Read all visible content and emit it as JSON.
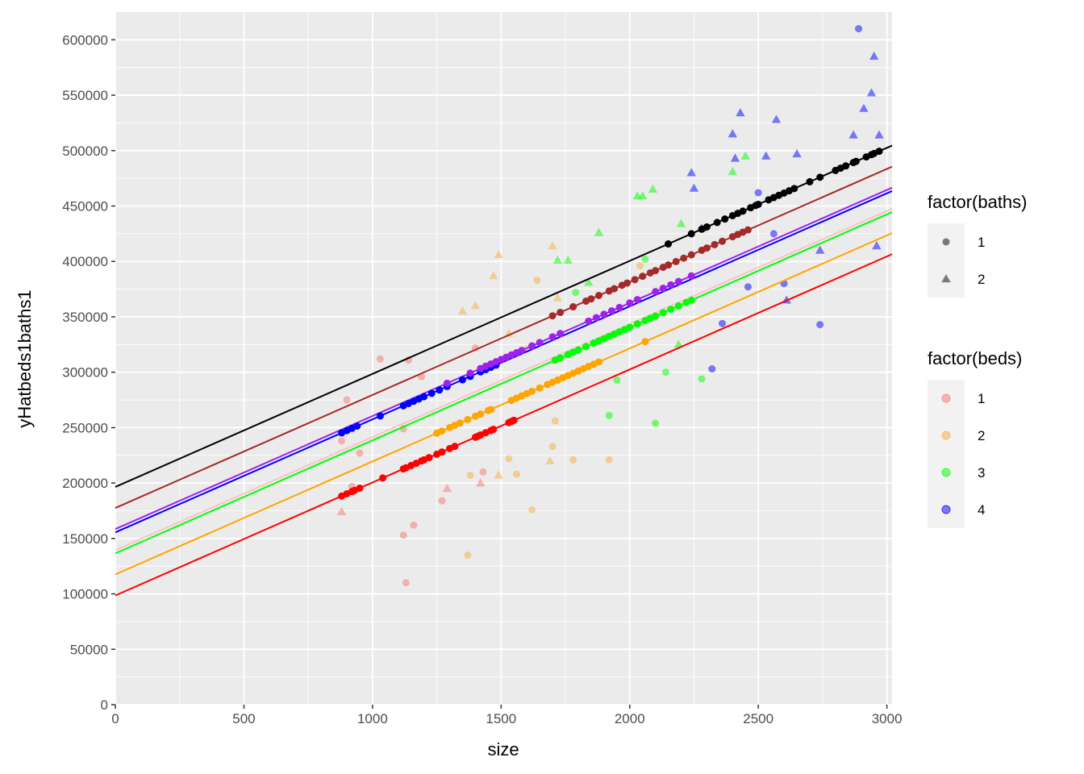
{
  "chart_data": {
    "type": "scatter",
    "xlabel": "size",
    "ylabel": "yHatbeds1baths1",
    "xlim": [
      0,
      3020
    ],
    "ylim": [
      0,
      625000
    ],
    "x_ticks": [
      0,
      500,
      1000,
      1500,
      2000,
      2500,
      3000
    ],
    "y_ticks": [
      0,
      50000,
      100000,
      150000,
      200000,
      250000,
      300000,
      350000,
      400000,
      450000,
      500000,
      550000,
      600000
    ],
    "grid": true,
    "legend_placement": "right",
    "legends": [
      {
        "title": "factor(baths)",
        "entries": [
          {
            "label": "1",
            "shape": "circle"
          },
          {
            "label": "2",
            "shape": "triangle"
          }
        ]
      },
      {
        "title": "factor(beds)",
        "entries": [
          {
            "label": "1",
            "color": "#F8766D"
          },
          {
            "label": "2",
            "color": "#F5B041"
          },
          {
            "label": "3",
            "color": "#00FF00"
          },
          {
            "label": "4",
            "color": "#0000FF"
          }
        ]
      }
    ],
    "colors": {
      "beds1": "#ff0000",
      "beds2": "#ffa500",
      "beds3": "#00ee00",
      "beds4": "#0000ff"
    },
    "lines": [
      {
        "color": "#000000",
        "intercept": 196500,
        "slope": 102
      },
      {
        "color": "#a52a2a",
        "intercept": 177500,
        "slope": 102
      },
      {
        "color": "#a020f0",
        "intercept": 158500,
        "slope": 102
      },
      {
        "color": "#0000ff",
        "intercept": 155500,
        "slope": 102
      },
      {
        "color": "#ffc0cb",
        "intercept": 139500,
        "slope": 102
      },
      {
        "color": "#00ff00",
        "intercept": 136500,
        "slope": 102
      },
      {
        "color": "#ffa500",
        "intercept": 117500,
        "slope": 102
      },
      {
        "color": "#ff0000",
        "intercept": 98500,
        "slope": 102
      }
    ],
    "fitted_points": [
      {
        "color": "#ff0000",
        "x": [
          880,
          900,
          920,
          930,
          950,
          1040,
          1120,
          1130,
          1150,
          1170,
          1190,
          1200,
          1220,
          1250,
          1270,
          1300,
          1320,
          1400,
          1410,
          1420,
          1440,
          1460,
          1470,
          1530,
          1540,
          1550
        ]
      },
      {
        "color": "#ffa500",
        "x": [
          1250,
          1270,
          1300,
          1320,
          1340,
          1370,
          1400,
          1420,
          1450,
          1460,
          1540,
          1560,
          1580,
          1600,
          1620,
          1650,
          1680,
          1700,
          1720,
          1740,
          1760,
          1780,
          1800,
          1820,
          1840,
          1860,
          1880,
          2060
        ]
      },
      {
        "color": "#00ff00",
        "x": [
          1710,
          1730,
          1760,
          1780,
          1800,
          1830,
          1860,
          1880,
          1900,
          1920,
          1940,
          1960,
          1980,
          2000,
          2030,
          2060,
          2080,
          2100,
          2130,
          2160,
          2190,
          2220,
          2240
        ]
      },
      {
        "color": "#0000ff",
        "x": [
          880,
          900,
          920,
          940,
          1030,
          1120,
          1140,
          1160,
          1180,
          1200,
          1230,
          1260,
          1290,
          1350,
          1380,
          1420,
          1440,
          1460,
          1480
        ]
      },
      {
        "color": "#a020f0",
        "x": [
          1290,
          1380,
          1420,
          1440,
          1460,
          1480,
          1500,
          1520,
          1540,
          1560,
          1580,
          1620,
          1650,
          1700,
          1730,
          1840,
          1870,
          1900,
          1930,
          1960,
          2000,
          2030,
          2100,
          2130,
          2160,
          2190,
          2240
        ]
      },
      {
        "color": "#a52a2a",
        "x": [
          1700,
          1730,
          1780,
          1830,
          1850,
          1880,
          1920,
          1940,
          1970,
          1990,
          2020,
          2050,
          2080,
          2100,
          2130,
          2150,
          2180,
          2210,
          2240,
          2280,
          2300,
          2330,
          2360,
          2400,
          2420,
          2440,
          2460
        ]
      },
      {
        "color": "#000000",
        "x": [
          2150,
          2240,
          2280,
          2300,
          2340,
          2370,
          2400,
          2420,
          2440,
          2470,
          2490,
          2500,
          2540,
          2560,
          2580,
          2600,
          2620,
          2640,
          2700,
          2740,
          2800,
          2820,
          2840,
          2870,
          2880,
          2920,
          2940,
          2950,
          2970
        ]
      }
    ],
    "observations": [
      {
        "x": 880,
        "y": 238000,
        "color": "#F8766D",
        "shape": "circle"
      },
      {
        "x": 880,
        "y": 174000,
        "color": "#F8766D",
        "shape": "triangle"
      },
      {
        "x": 900,
        "y": 275000,
        "color": "#F8766D",
        "shape": "circle"
      },
      {
        "x": 920,
        "y": 197000,
        "color": "#F8766D",
        "shape": "circle"
      },
      {
        "x": 950,
        "y": 227000,
        "color": "#F8766D",
        "shape": "circle"
      },
      {
        "x": 1030,
        "y": 312000,
        "color": "#F8766D",
        "shape": "circle"
      },
      {
        "x": 1120,
        "y": 249000,
        "color": "#F8766D",
        "shape": "circle"
      },
      {
        "x": 1120,
        "y": 153000,
        "color": "#F8766D",
        "shape": "circle"
      },
      {
        "x": 1130,
        "y": 110000,
        "color": "#F8766D",
        "shape": "circle"
      },
      {
        "x": 1140,
        "y": 311000,
        "color": "#F8766D",
        "shape": "circle"
      },
      {
        "x": 1160,
        "y": 162000,
        "color": "#F8766D",
        "shape": "circle"
      },
      {
        "x": 1190,
        "y": 296000,
        "color": "#F8766D",
        "shape": "circle"
      },
      {
        "x": 1270,
        "y": 184000,
        "color": "#F8766D",
        "shape": "circle"
      },
      {
        "x": 1290,
        "y": 195000,
        "color": "#F8766D",
        "shape": "triangle"
      },
      {
        "x": 1420,
        "y": 200000,
        "color": "#F8766D",
        "shape": "triangle"
      },
      {
        "x": 1430,
        "y": 210000,
        "color": "#F8766D",
        "shape": "circle"
      },
      {
        "x": 1400,
        "y": 322000,
        "color": "#F8766D",
        "shape": "circle"
      },
      {
        "x": 1370,
        "y": 135000,
        "color": "#F5B041",
        "shape": "circle"
      },
      {
        "x": 1380,
        "y": 207000,
        "color": "#F5B041",
        "shape": "circle"
      },
      {
        "x": 1350,
        "y": 355000,
        "color": "#F5B041",
        "shape": "triangle"
      },
      {
        "x": 1400,
        "y": 360000,
        "color": "#F5B041",
        "shape": "triangle"
      },
      {
        "x": 1470,
        "y": 387000,
        "color": "#F5B041",
        "shape": "triangle"
      },
      {
        "x": 1490,
        "y": 406000,
        "color": "#F5B041",
        "shape": "triangle"
      },
      {
        "x": 1490,
        "y": 207000,
        "color": "#F5B041",
        "shape": "triangle"
      },
      {
        "x": 1530,
        "y": 222000,
        "color": "#F5B041",
        "shape": "circle"
      },
      {
        "x": 1560,
        "y": 208000,
        "color": "#F5B041",
        "shape": "circle"
      },
      {
        "x": 1620,
        "y": 176000,
        "color": "#F5B041",
        "shape": "circle"
      },
      {
        "x": 1640,
        "y": 383000,
        "color": "#F5B041",
        "shape": "circle"
      },
      {
        "x": 1690,
        "y": 220000,
        "color": "#F5B041",
        "shape": "triangle"
      },
      {
        "x": 1700,
        "y": 233000,
        "color": "#F5B041",
        "shape": "circle"
      },
      {
        "x": 1700,
        "y": 414000,
        "color": "#F5B041",
        "shape": "triangle"
      },
      {
        "x": 1720,
        "y": 367000,
        "color": "#F5B041",
        "shape": "triangle"
      },
      {
        "x": 1710,
        "y": 256000,
        "color": "#F5B041",
        "shape": "circle"
      },
      {
        "x": 1780,
        "y": 221000,
        "color": "#F5B041",
        "shape": "circle"
      },
      {
        "x": 1920,
        "y": 221000,
        "color": "#F5B041",
        "shape": "circle"
      },
      {
        "x": 1530,
        "y": 335000,
        "color": "#F5B041",
        "shape": "triangle"
      },
      {
        "x": 1600,
        "y": 321000,
        "color": "#F5B041",
        "shape": "circle"
      },
      {
        "x": 2040,
        "y": 396000,
        "color": "#F5B041",
        "shape": "circle"
      },
      {
        "x": 1720,
        "y": 401000,
        "color": "#00FF00",
        "shape": "triangle"
      },
      {
        "x": 1760,
        "y": 401000,
        "color": "#00FF00",
        "shape": "triangle"
      },
      {
        "x": 1790,
        "y": 372000,
        "color": "#00FF00",
        "shape": "circle"
      },
      {
        "x": 1840,
        "y": 381000,
        "color": "#00FF00",
        "shape": "triangle"
      },
      {
        "x": 1880,
        "y": 426000,
        "color": "#00FF00",
        "shape": "triangle"
      },
      {
        "x": 1920,
        "y": 261000,
        "color": "#00FF00",
        "shape": "circle"
      },
      {
        "x": 1950,
        "y": 293000,
        "color": "#00FF00",
        "shape": "circle"
      },
      {
        "x": 2030,
        "y": 459000,
        "color": "#00FF00",
        "shape": "triangle"
      },
      {
        "x": 2050,
        "y": 459000,
        "color": "#00FF00",
        "shape": "triangle"
      },
      {
        "x": 2090,
        "y": 465000,
        "color": "#00FF00",
        "shape": "triangle"
      },
      {
        "x": 2060,
        "y": 402000,
        "color": "#00FF00",
        "shape": "circle"
      },
      {
        "x": 2100,
        "y": 254000,
        "color": "#00FF00",
        "shape": "circle"
      },
      {
        "x": 2140,
        "y": 300000,
        "color": "#00FF00",
        "shape": "circle"
      },
      {
        "x": 2190,
        "y": 325000,
        "color": "#00FF00",
        "shape": "triangle"
      },
      {
        "x": 2200,
        "y": 434000,
        "color": "#00FF00",
        "shape": "triangle"
      },
      {
        "x": 2280,
        "y": 294000,
        "color": "#00FF00",
        "shape": "circle"
      },
      {
        "x": 2400,
        "y": 481000,
        "color": "#00FF00",
        "shape": "triangle"
      },
      {
        "x": 2450,
        "y": 495000,
        "color": "#00FF00",
        "shape": "triangle"
      },
      {
        "x": 2240,
        "y": 480000,
        "color": "#0000FF",
        "shape": "triangle"
      },
      {
        "x": 2250,
        "y": 466000,
        "color": "#0000FF",
        "shape": "triangle"
      },
      {
        "x": 2280,
        "y": 430000,
        "color": "#0000FF",
        "shape": "triangle"
      },
      {
        "x": 2320,
        "y": 303000,
        "color": "#0000FF",
        "shape": "circle"
      },
      {
        "x": 2360,
        "y": 344000,
        "color": "#0000FF",
        "shape": "circle"
      },
      {
        "x": 2400,
        "y": 515000,
        "color": "#0000FF",
        "shape": "triangle"
      },
      {
        "x": 2410,
        "y": 493000,
        "color": "#0000FF",
        "shape": "triangle"
      },
      {
        "x": 2430,
        "y": 534000,
        "color": "#0000FF",
        "shape": "triangle"
      },
      {
        "x": 2460,
        "y": 377000,
        "color": "#0000FF",
        "shape": "circle"
      },
      {
        "x": 2500,
        "y": 462000,
        "color": "#0000FF",
        "shape": "circle"
      },
      {
        "x": 2530,
        "y": 495000,
        "color": "#0000FF",
        "shape": "triangle"
      },
      {
        "x": 2560,
        "y": 425000,
        "color": "#0000FF",
        "shape": "circle"
      },
      {
        "x": 2570,
        "y": 528000,
        "color": "#0000FF",
        "shape": "triangle"
      },
      {
        "x": 2600,
        "y": 380000,
        "color": "#0000FF",
        "shape": "circle"
      },
      {
        "x": 2610,
        "y": 365000,
        "color": "#0000FF",
        "shape": "triangle"
      },
      {
        "x": 2650,
        "y": 497000,
        "color": "#0000FF",
        "shape": "triangle"
      },
      {
        "x": 2740,
        "y": 343000,
        "color": "#0000FF",
        "shape": "circle"
      },
      {
        "x": 2740,
        "y": 410000,
        "color": "#0000FF",
        "shape": "triangle"
      },
      {
        "x": 2870,
        "y": 514000,
        "color": "#0000FF",
        "shape": "triangle"
      },
      {
        "x": 2890,
        "y": 610000,
        "color": "#0000FF",
        "shape": "circle"
      },
      {
        "x": 2910,
        "y": 538000,
        "color": "#0000FF",
        "shape": "triangle"
      },
      {
        "x": 2940,
        "y": 552000,
        "color": "#0000FF",
        "shape": "triangle"
      },
      {
        "x": 2950,
        "y": 585000,
        "color": "#0000FF",
        "shape": "triangle"
      },
      {
        "x": 2960,
        "y": 414000,
        "color": "#0000FF",
        "shape": "triangle"
      },
      {
        "x": 2970,
        "y": 514000,
        "color": "#0000FF",
        "shape": "triangle"
      }
    ]
  }
}
